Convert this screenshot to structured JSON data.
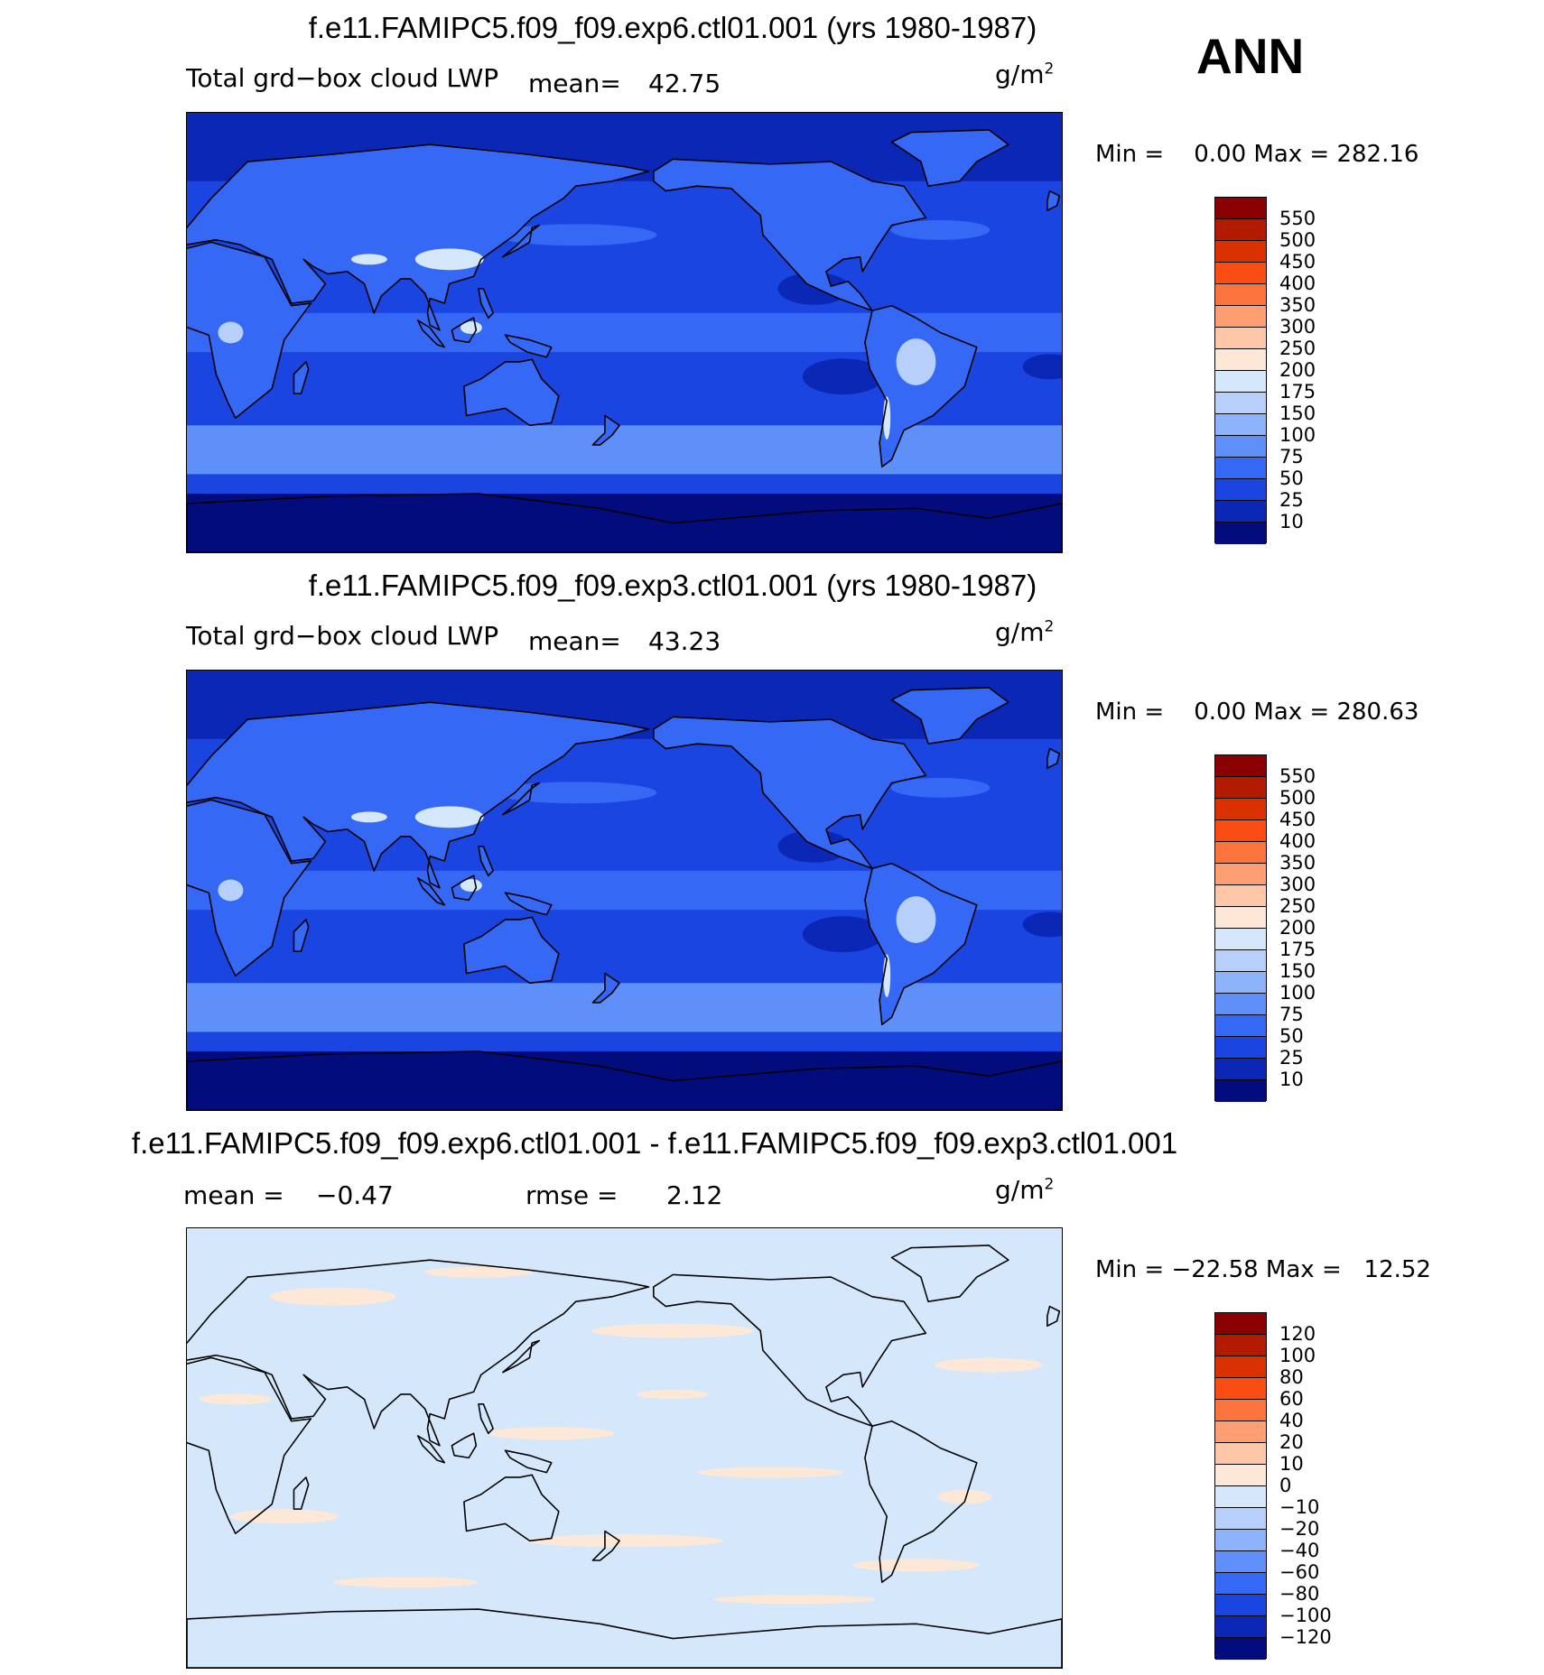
{
  "season": "ANN",
  "panels": [
    {
      "title": "f.e11.FAMIPC5.f09_f09.exp6.ctl01.001 (yrs 1980-1987)",
      "variable": "Total grd−box cloud LWP",
      "stat1_label": "mean=",
      "stat1_value": "42.75",
      "units": "g/m",
      "units_sup": "2",
      "minmax": "Min =    0.00 Max = 282.16",
      "legend_labels": [
        "550",
        "500",
        "450",
        "400",
        "350",
        "300",
        "250",
        "200",
        "175",
        "150",
        "100",
        "75",
        "50",
        "25",
        "10"
      ],
      "legend_colors": [
        "#8b0000",
        "#b31b00",
        "#d93100",
        "#fa4d14",
        "#fc743d",
        "#fd9e73",
        "#fec8a8",
        "#fde8d8",
        "#d5e8fb",
        "#b7d0fb",
        "#8db4fa",
        "#5f8ff8",
        "#3568f5",
        "#1a45e0",
        "#0a27b5",
        "#020c7c"
      ],
      "map_style": "lwp",
      "min": 0.0,
      "max": 282.16
    },
    {
      "title": "f.e11.FAMIPC5.f09_f09.exp3.ctl01.001 (yrs 1980-1987)",
      "variable": "Total grd−box cloud LWP",
      "stat1_label": "mean=",
      "stat1_value": "43.23",
      "units": "g/m",
      "units_sup": "2",
      "minmax": "Min =    0.00 Max = 280.63",
      "legend_labels": [
        "550",
        "500",
        "450",
        "400",
        "350",
        "300",
        "250",
        "200",
        "175",
        "150",
        "100",
        "75",
        "50",
        "25",
        "10"
      ],
      "legend_colors": [
        "#8b0000",
        "#b31b00",
        "#d93100",
        "#fa4d14",
        "#fc743d",
        "#fd9e73",
        "#fec8a8",
        "#fde8d8",
        "#d5e8fb",
        "#b7d0fb",
        "#8db4fa",
        "#5f8ff8",
        "#3568f5",
        "#1a45e0",
        "#0a27b5",
        "#020c7c"
      ],
      "map_style": "lwp",
      "min": 0.0,
      "max": 280.63
    },
    {
      "title": "f.e11.FAMIPC5.f09_f09.exp6.ctl01.001 - f.e11.FAMIPC5.f09_f09.exp3.ctl01.001",
      "stat1_label": "mean =",
      "stat1_value": "−0.47",
      "stat2_label": "rmse =",
      "stat2_value": "2.12",
      "units": "g/m",
      "units_sup": "2",
      "minmax": "Min = −22.58 Max =   12.52",
      "legend_labels": [
        "120",
        "100",
        "80",
        "60",
        "40",
        "20",
        "10",
        "0",
        "−10",
        "−20",
        "−40",
        "−60",
        "−80",
        "−100",
        "−120"
      ],
      "legend_colors": [
        "#8b0000",
        "#b31b00",
        "#d93100",
        "#fa4d14",
        "#fc743d",
        "#fd9e73",
        "#fec8a8",
        "#fde8d8",
        "#d5e8fb",
        "#b7d0fb",
        "#8db4fa",
        "#5f8ff8",
        "#3568f5",
        "#1a45e0",
        "#0a27b5",
        "#020c7c"
      ],
      "map_style": "diff",
      "min": -22.58,
      "max": 12.52
    }
  ]
}
